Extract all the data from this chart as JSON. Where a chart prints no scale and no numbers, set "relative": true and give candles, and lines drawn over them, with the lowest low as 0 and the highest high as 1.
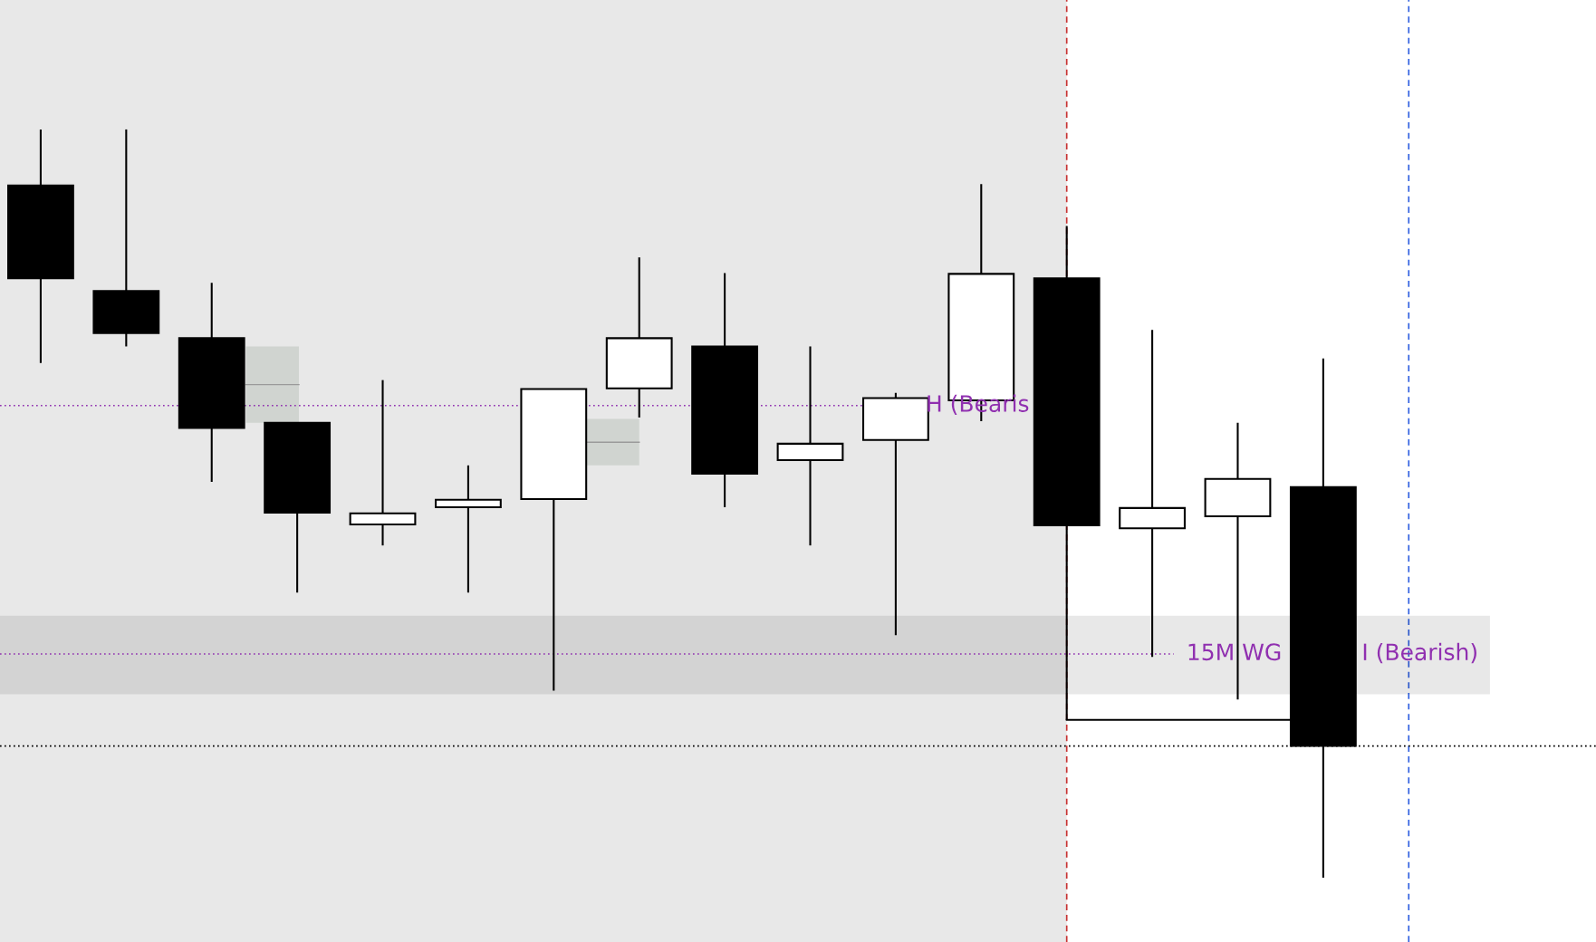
{
  "chart_data": {
    "type": "candlestick",
    "relative": true,
    "categories": [
      null,
      null,
      null,
      null,
      null,
      null,
      null,
      null,
      null,
      null,
      null,
      null,
      null,
      null,
      null,
      null
    ],
    "ohlc": [
      [
        0.925,
        1.0,
        0.688,
        0.801
      ],
      [
        0.784,
        1.0,
        0.71,
        0.728
      ],
      [
        0.721,
        0.795,
        0.529,
        0.601
      ],
      [
        0.608,
        0.608,
        0.381,
        0.488
      ],
      [
        0.472,
        0.665,
        0.444,
        0.487
      ],
      [
        0.495,
        0.551,
        0.381,
        0.505
      ],
      [
        0.506,
        0.653,
        0.25,
        0.653
      ],
      [
        0.654,
        0.829,
        0.615,
        0.721
      ],
      [
        0.71,
        0.808,
        0.495,
        0.54
      ],
      [
        0.558,
        0.71,
        0.444,
        0.58
      ],
      [
        0.585,
        0.648,
        0.324,
        0.641
      ],
      [
        0.638,
        0.927,
        0.61,
        0.807
      ],
      [
        0.801,
        0.871,
        0.211,
        0.471
      ],
      [
        0.467,
        0.732,
        0.295,
        0.494
      ],
      [
        0.483,
        0.608,
        0.238,
        0.533
      ],
      [
        0.522,
        0.694,
        0.0,
        0.176
      ]
    ],
    "ref_lines": [
      {
        "axis": "y",
        "value": 0.631,
        "label": "H (Bearis",
        "color": "#9030b0",
        "line_style": "dotted"
      },
      {
        "axis": "y",
        "value": 0.299,
        "label": "15M WG",
        "color": "#9030b0",
        "line_style": "dotted"
      },
      {
        "axis": "y",
        "value": 0.176,
        "color": "#000000",
        "line_style": "dotted"
      }
    ],
    "bands": [
      {
        "axis": "y",
        "from": 0.245,
        "to": 0.35,
        "color": "#000000"
      }
    ],
    "annotations": [
      "I (Bearish)"
    ]
  }
}
